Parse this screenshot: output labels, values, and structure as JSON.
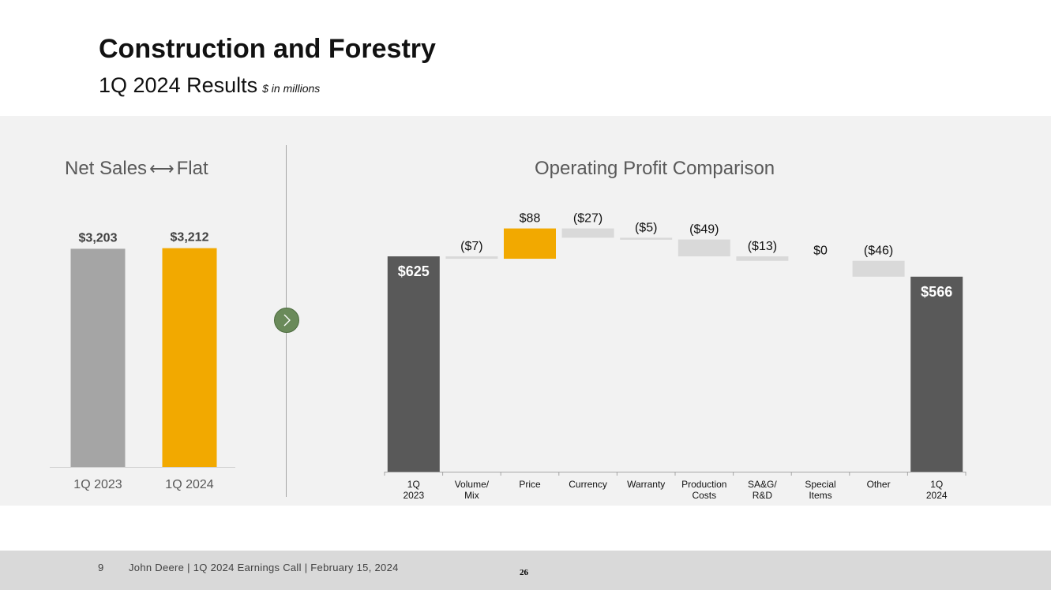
{
  "header": {
    "title": "Construction and Forestry",
    "subtitle": "1Q 2024 Results",
    "units": "$ in millions"
  },
  "net_sales": {
    "title_left": "Net Sales",
    "title_right": "Flat"
  },
  "operating_profit": {
    "title": "Operating Profit Comparison"
  },
  "colors": {
    "gray_bar": "#a5a5a5",
    "accent": "#f2a900",
    "dark": "#595959",
    "delta": "#d9d9d9"
  },
  "footer": {
    "page": "9",
    "text": "John Deere | 1Q 2024 Earnings Call | February 15, 2024",
    "slide_number": "26"
  },
  "chart_data": [
    {
      "type": "bar",
      "title": "Net Sales ⟷ Flat",
      "categories": [
        "1Q 2023",
        "1Q 2024"
      ],
      "values": [
        3203,
        3212
      ],
      "labels": [
        "$3,203",
        "$3,212"
      ],
      "colors": [
        "#a5a5a5",
        "#f2a900"
      ],
      "ylim": [
        0,
        3300
      ],
      "grid": false,
      "legend": "none"
    },
    {
      "type": "bar",
      "subtype": "waterfall",
      "title": "Operating Profit Comparison",
      "grid": false,
      "legend": "none",
      "ylim": [
        0,
        700
      ],
      "steps": [
        {
          "category": "1Q 2023",
          "value": 625,
          "kind": "total",
          "label": "$625"
        },
        {
          "category": "Volume/ Mix",
          "value": -7,
          "kind": "delta",
          "label": "($7)"
        },
        {
          "category": "Price",
          "value": 88,
          "kind": "delta",
          "label": "$88"
        },
        {
          "category": "Currency",
          "value": -27,
          "kind": "delta",
          "label": "($27)"
        },
        {
          "category": "Warranty",
          "value": -5,
          "kind": "delta",
          "label": "($5)"
        },
        {
          "category": "Production Costs",
          "value": -49,
          "kind": "delta",
          "label": "($49)"
        },
        {
          "category": "SA&G/ R&D",
          "value": -13,
          "kind": "delta",
          "label": "($13)"
        },
        {
          "category": "Special Items",
          "value": 0,
          "kind": "delta",
          "label": "$0"
        },
        {
          "category": "Other",
          "value": -46,
          "kind": "delta",
          "label": "($46)"
        },
        {
          "category": "1Q 2024",
          "value": 566,
          "kind": "total",
          "label": "$566"
        }
      ]
    }
  ]
}
